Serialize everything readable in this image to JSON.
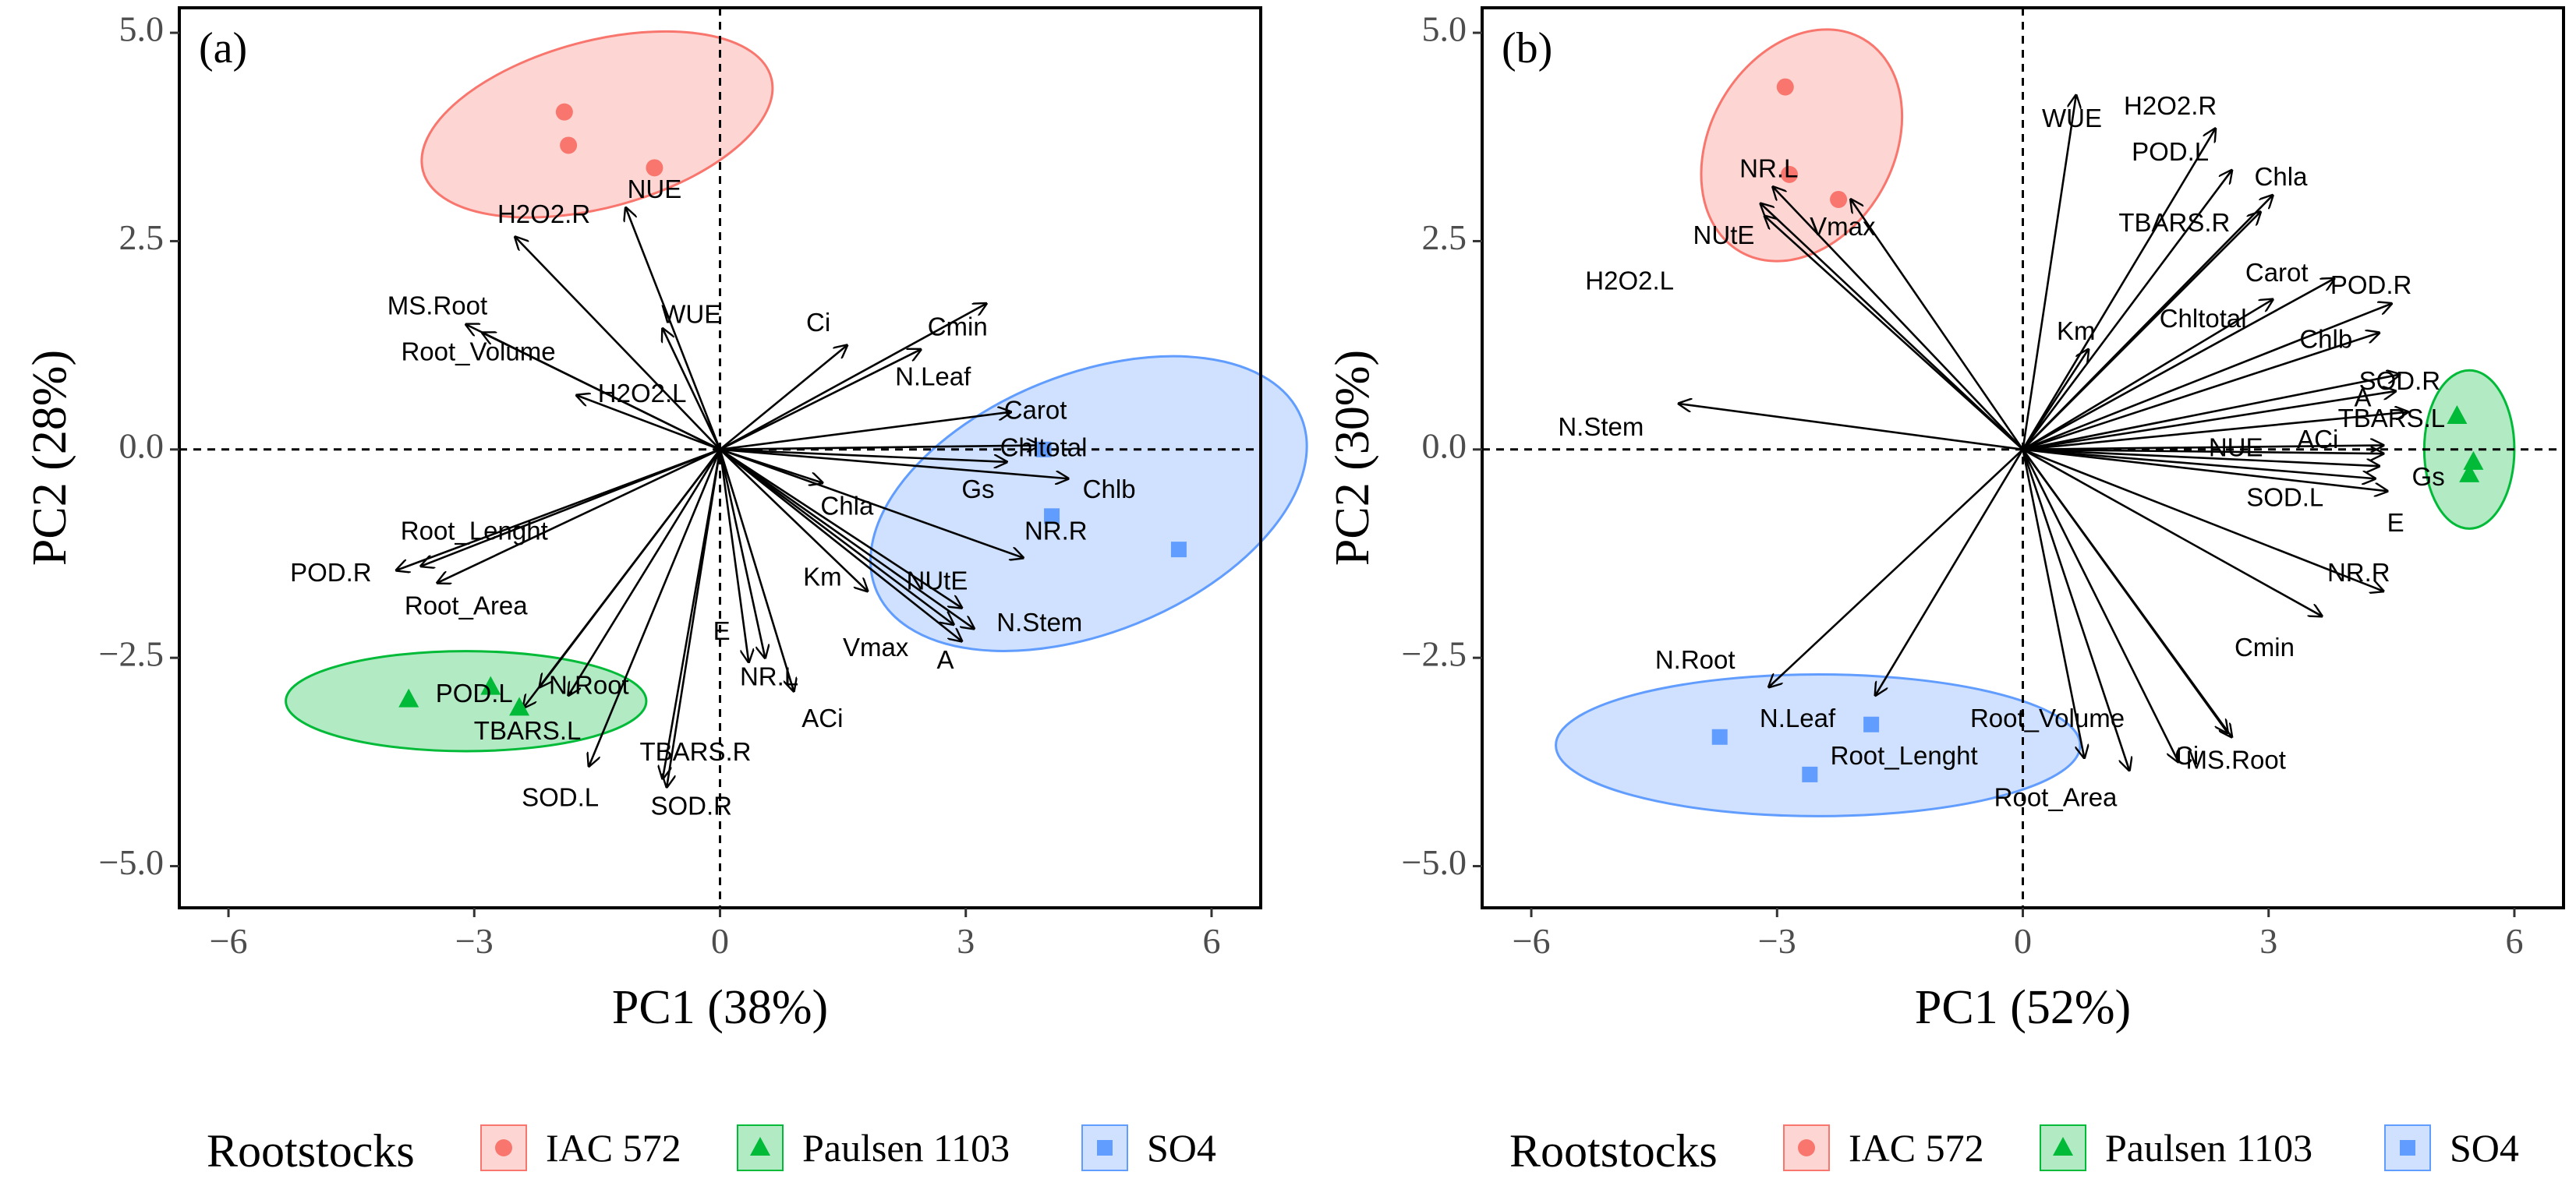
{
  "figure": {
    "legend": {
      "title": "Rootstocks",
      "entries": [
        {
          "name": "IAC 572",
          "color": "#F8766D",
          "shape": "circle"
        },
        {
          "name": "Paulsen 1103",
          "color": "#00BA38",
          "shape": "triangle"
        },
        {
          "name": "SO4",
          "color": "#619CFF",
          "shape": "square"
        }
      ]
    }
  },
  "chart_data": [
    {
      "type": "scatter",
      "panel_label": "(a)",
      "xlabel": "PC1 (38%)",
      "ylabel": "PC2 (28%)",
      "xlim": [
        -6.6,
        6.6
      ],
      "ylim": [
        -5.5,
        5.3
      ],
      "xticks": [
        -6,
        -3,
        0,
        3,
        6
      ],
      "xtick_labels": [
        "−6",
        "−3",
        "0",
        "3",
        "6"
      ],
      "yticks": [
        5.0,
        2.5,
        0.0,
        -2.5,
        -5.0
      ],
      "ytick_labels": [
        "5.0",
        "2.5",
        "0.0",
        "−2.5",
        "−5.0"
      ],
      "points": [
        {
          "group": "IAC 572",
          "x": -1.9,
          "y": 4.05
        },
        {
          "group": "IAC 572",
          "x": -1.85,
          "y": 3.65
        },
        {
          "group": "IAC 572",
          "x": -0.8,
          "y": 3.38
        },
        {
          "group": "Paulsen 1103",
          "x": -3.8,
          "y": -3.0
        },
        {
          "group": "Paulsen 1103",
          "x": -2.8,
          "y": -2.85
        },
        {
          "group": "Paulsen 1103",
          "x": -2.45,
          "y": -3.1
        },
        {
          "group": "SO4",
          "x": 3.95,
          "y": 0.0
        },
        {
          "group": "SO4",
          "x": 4.05,
          "y": -0.8
        },
        {
          "group": "SO4",
          "x": 5.6,
          "y": -1.2
        }
      ],
      "ellipses": [
        {
          "group": "IAC 572",
          "cx": -1.5,
          "cy": 3.9,
          "rx": 2.2,
          "ry": 1.0,
          "angle": -15
        },
        {
          "group": "Paulsen 1103",
          "cx": -3.1,
          "cy": -3.02,
          "rx": 2.2,
          "ry": 0.6,
          "angle": 0
        },
        {
          "group": "SO4",
          "cx": 4.5,
          "cy": -0.65,
          "rx": 2.8,
          "ry": 1.55,
          "angle": -22
        }
      ],
      "loadings": [
        {
          "name": "H2O2.R",
          "x": -2.5,
          "y": 2.55,
          "lx": -2.15,
          "ly": 2.8
        },
        {
          "name": "NUE",
          "x": -1.15,
          "y": 2.9,
          "lx": -0.8,
          "ly": 3.1
        },
        {
          "name": "MS.Root",
          "x": -3.1,
          "y": 1.5,
          "lx": -3.45,
          "ly": 1.7
        },
        {
          "name": "Root_Volume",
          "x": -2.9,
          "y": 1.4,
          "lx": -2.95,
          "ly": 1.15
        },
        {
          "name": "WUE",
          "x": -0.7,
          "y": 1.45,
          "lx": -0.35,
          "ly": 1.6
        },
        {
          "name": "H2O2.L",
          "x": -1.75,
          "y": 0.65,
          "lx": -0.95,
          "ly": 0.65
        },
        {
          "name": "Ci",
          "x": 1.55,
          "y": 1.25,
          "lx": 1.2,
          "ly": 1.5
        },
        {
          "name": "Cmin",
          "x": 3.25,
          "y": 1.75,
          "lx": 2.9,
          "ly": 1.45
        },
        {
          "name": "N.Leaf",
          "x": 2.45,
          "y": 1.2,
          "lx": 2.6,
          "ly": 0.85
        },
        {
          "name": "Carot",
          "x": 3.55,
          "y": 0.45,
          "lx": 3.85,
          "ly": 0.45
        },
        {
          "name": "Chltotal",
          "x": 3.9,
          "y": 0.05,
          "lx": 3.95,
          "ly": 0.0
        },
        {
          "name": "Gs",
          "x": 3.5,
          "y": -0.15,
          "lx": 3.15,
          "ly": -0.5
        },
        {
          "name": "Chlb",
          "x": 4.25,
          "y": -0.35,
          "lx": 4.75,
          "ly": -0.5
        },
        {
          "name": "NR.R",
          "x": 3.7,
          "y": -1.3,
          "lx": 4.1,
          "ly": -1.0
        },
        {
          "name": "Chla",
          "x": 1.25,
          "y": -0.4,
          "lx": 1.55,
          "ly": -0.7
        },
        {
          "name": "Km",
          "x": 1.8,
          "y": -1.7,
          "lx": 1.25,
          "ly": -1.55
        },
        {
          "name": "NUtE",
          "x": 2.95,
          "y": -1.9,
          "lx": 2.65,
          "ly": -1.6
        },
        {
          "name": "N.Stem",
          "x": 3.1,
          "y": -2.15,
          "lx": 3.9,
          "ly": -2.1
        },
        {
          "name": "Vmax",
          "x": 2.85,
          "y": -2.1,
          "lx": 1.9,
          "ly": -2.4
        },
        {
          "name": "A",
          "x": 2.95,
          "y": -2.3,
          "lx": 2.75,
          "ly": -2.55
        },
        {
          "name": "Root_Lenght",
          "x": -3.65,
          "y": -1.4,
          "lx": -3.0,
          "ly": -1.0
        },
        {
          "name": "POD.R",
          "x": -3.95,
          "y": -1.45,
          "lx": -4.75,
          "ly": -1.5
        },
        {
          "name": "Root_Area",
          "x": -3.45,
          "y": -1.6,
          "lx": -3.1,
          "ly": -1.9
        },
        {
          "name": "E",
          "x": 0.35,
          "y": -2.55,
          "lx": 0.02,
          "ly": -2.2
        },
        {
          "name": "NR.L",
          "x": 0.55,
          "y": -2.5,
          "lx": 0.6,
          "ly": -2.75
        },
        {
          "name": "ACi",
          "x": 0.9,
          "y": -2.9,
          "lx": 1.25,
          "ly": -3.25
        },
        {
          "name": "POD.L",
          "x": -2.2,
          "y": -2.85,
          "lx": -3.0,
          "ly": -2.95
        },
        {
          "name": "N.Root",
          "x": -1.85,
          "y": -2.95,
          "lx": -1.6,
          "ly": -2.85
        },
        {
          "name": "TBARS.L",
          "x": -2.4,
          "y": -3.1,
          "lx": -2.35,
          "ly": -3.4
        },
        {
          "name": "SOD.L",
          "x": -1.6,
          "y": -3.8,
          "lx": -1.95,
          "ly": -4.2
        },
        {
          "name": "TBARS.R",
          "x": -0.7,
          "y": -3.95,
          "lx": -0.3,
          "ly": -3.65
        },
        {
          "name": "SOD.R",
          "x": -0.65,
          "y": -4.05,
          "lx": -0.35,
          "ly": -4.3
        }
      ]
    },
    {
      "type": "scatter",
      "panel_label": "(b)",
      "xlabel": "PC1 (52%)",
      "ylabel": "PC2 (30%)",
      "xlim": [
        -6.6,
        6.6
      ],
      "ylim": [
        -5.5,
        5.3
      ],
      "xticks": [
        -6,
        -3,
        0,
        3,
        6
      ],
      "xtick_labels": [
        "−6",
        "−3",
        "0",
        "3",
        "6"
      ],
      "yticks": [
        5.0,
        2.5,
        0.0,
        -2.5,
        -5.0
      ],
      "ytick_labels": [
        "5.0",
        "2.5",
        "0.0",
        "−2.5",
        "−5.0"
      ],
      "points": [
        {
          "group": "IAC 572",
          "x": -2.9,
          "y": 4.35
        },
        {
          "group": "IAC 572",
          "x": -2.85,
          "y": 3.3
        },
        {
          "group": "IAC 572",
          "x": -2.25,
          "y": 3.0
        },
        {
          "group": "Paulsen 1103",
          "x": 5.3,
          "y": 0.4
        },
        {
          "group": "Paulsen 1103",
          "x": 5.5,
          "y": -0.15
        },
        {
          "group": "Paulsen 1103",
          "x": 5.45,
          "y": -0.3
        },
        {
          "group": "SO4",
          "x": -3.7,
          "y": -3.45
        },
        {
          "group": "SO4",
          "x": -2.6,
          "y": -3.9
        },
        {
          "group": "SO4",
          "x": -1.85,
          "y": -3.3
        }
      ],
      "ellipses": [
        {
          "group": "IAC 572",
          "cx": -2.7,
          "cy": 3.65,
          "rx": 1.5,
          "ry": 1.1,
          "angle": -60
        },
        {
          "group": "Paulsen 1103",
          "cx": 5.45,
          "cy": 0.0,
          "rx": 0.55,
          "ry": 0.95,
          "angle": 0
        },
        {
          "group": "SO4",
          "cx": -2.5,
          "cy": -3.55,
          "rx": 3.2,
          "ry": 0.85,
          "angle": 0
        }
      ],
      "loadings": [
        {
          "name": "WUE",
          "x": 0.65,
          "y": 4.25,
          "lx": 0.6,
          "ly": 3.95
        },
        {
          "name": "H2O2.R",
          "x": 2.35,
          "y": 3.85,
          "lx": 1.8,
          "ly": 4.1
        },
        {
          "name": "POD.L",
          "x": 2.55,
          "y": 3.35,
          "lx": 1.8,
          "ly": 3.55
        },
        {
          "name": "Chla",
          "x": 3.05,
          "y": 3.05,
          "lx": 3.15,
          "ly": 3.25
        },
        {
          "name": "TBARS.R",
          "x": 2.9,
          "y": 2.85,
          "lx": 1.85,
          "ly": 2.7
        },
        {
          "name": "Carot",
          "x": 3.8,
          "y": 2.05,
          "lx": 3.1,
          "ly": 2.1
        },
        {
          "name": "POD.R",
          "x": 4.5,
          "y": 1.75,
          "lx": 4.25,
          "ly": 1.95
        },
        {
          "name": "Chltotal",
          "x": 3.05,
          "y": 1.8,
          "lx": 2.2,
          "ly": 1.55
        },
        {
          "name": "Chlb",
          "x": 4.35,
          "y": 1.4,
          "lx": 3.7,
          "ly": 1.3
        },
        {
          "name": "SOD.R",
          "x": 4.6,
          "y": 0.9,
          "lx": 4.6,
          "ly": 0.8
        },
        {
          "name": "A",
          "x": 4.55,
          "y": 0.7,
          "lx": 4.15,
          "ly": 0.6
        },
        {
          "name": "TBARS.L",
          "x": 4.7,
          "y": 0.45,
          "lx": 4.5,
          "ly": 0.35
        },
        {
          "name": "Km",
          "x": 0.8,
          "y": 1.2,
          "lx": 0.65,
          "ly": 1.4
        },
        {
          "name": "ACi",
          "x": 4.4,
          "y": 0.05,
          "lx": 3.6,
          "ly": 0.1
        },
        {
          "name": "NUE",
          "x": 4.4,
          "y": -0.05,
          "lx": 2.6,
          "ly": 0.0
        },
        {
          "name": "Gs",
          "x": 4.35,
          "y": -0.2,
          "lx": 4.95,
          "ly": -0.35
        },
        {
          "name": "SOD.L",
          "x": 4.3,
          "y": -0.35,
          "lx": 3.2,
          "ly": -0.6
        },
        {
          "name": "E",
          "x": 4.45,
          "y": -0.5,
          "lx": 4.55,
          "ly": -0.9
        },
        {
          "name": "NR.R",
          "x": 4.4,
          "y": -1.7,
          "lx": 4.1,
          "ly": -1.5
        },
        {
          "name": "Cmin",
          "x": 3.65,
          "y": -2.0,
          "lx": 2.95,
          "ly": -2.4
        },
        {
          "name": "N.Stem",
          "x": -4.2,
          "y": 0.55,
          "lx": -5.15,
          "ly": 0.25
        },
        {
          "name": "NR.L",
          "x": -3.05,
          "y": 3.15,
          "lx": -3.1,
          "ly": 3.35
        },
        {
          "name": "NUtE",
          "x": -3.2,
          "y": 2.95,
          "lx": -3.65,
          "ly": 2.55
        },
        {
          "name": "H2O2.L",
          "x": -3.15,
          "y": 2.8,
          "lx": -4.8,
          "ly": 2.0
        },
        {
          "name": "Vmax",
          "x": -2.1,
          "y": 3.0,
          "lx": -2.2,
          "ly": 2.65
        },
        {
          "name": "N.Root",
          "x": -3.1,
          "y": -2.85,
          "lx": -4.0,
          "ly": -2.55
        },
        {
          "name": "N.Leaf",
          "x": -1.8,
          "y": -2.95,
          "lx": -2.75,
          "ly": -3.25
        },
        {
          "name": "Root_Volume",
          "x": 2.5,
          "y": -3.4,
          "lx": 0.3,
          "ly": -3.25
        },
        {
          "name": "Root_Lenght",
          "x": 0.75,
          "y": -3.7,
          "lx": -1.45,
          "ly": -3.7
        },
        {
          "name": "Ci",
          "x": 1.9,
          "y": -3.75,
          "lx": 2.0,
          "ly": -3.7
        },
        {
          "name": "MS.Root",
          "x": 2.55,
          "y": -3.45,
          "lx": 2.6,
          "ly": -3.75
        },
        {
          "name": "Root_Area",
          "x": 1.3,
          "y": -3.85,
          "lx": 0.4,
          "ly": -4.2
        }
      ]
    }
  ]
}
